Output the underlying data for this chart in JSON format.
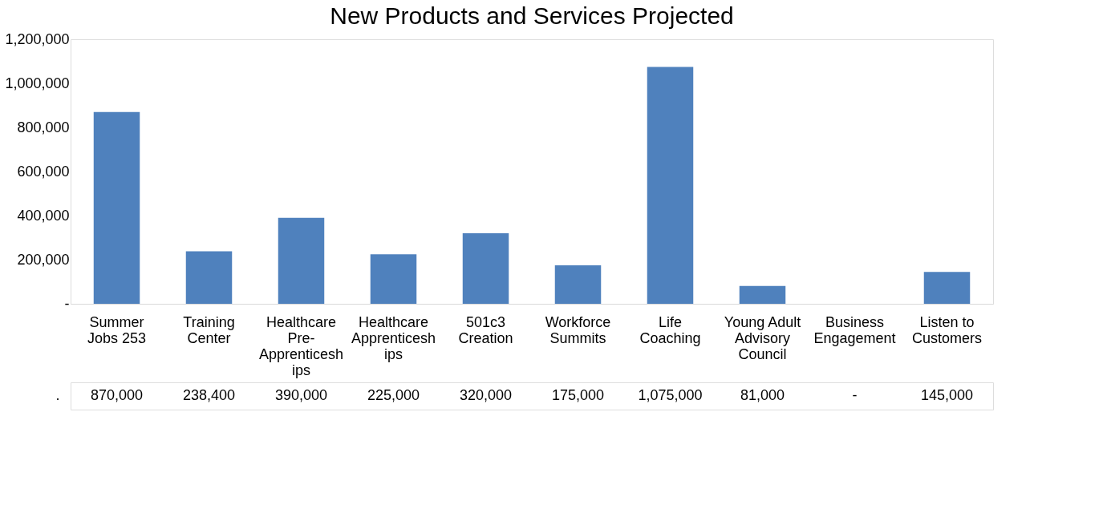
{
  "chart_data": {
    "type": "bar",
    "title": "New Products and Services Projected",
    "categories": [
      "Summer\nJobs 253",
      "Training\nCenter",
      "Healthcare\nPre-\nApprenticesh\nips",
      "Healthcare\nApprenticesh\nips",
      "501c3\nCreation",
      "Workforce\nSummits",
      "Life\nCoaching",
      "Young Adult\nAdvisory\nCouncil",
      "Business\nEngagement",
      "Listen to\nCustomers"
    ],
    "series": [
      {
        "name": ".",
        "color": "#4f81bd",
        "values": [
          870000,
          238400,
          390000,
          225000,
          320000,
          175000,
          1075000,
          81000,
          0,
          145000
        ],
        "value_labels": [
          "870,000",
          "238,400",
          "390,000",
          "225,000",
          "320,000",
          "175,000",
          "1,075,000",
          "81,000",
          "-",
          "145,000"
        ]
      }
    ],
    "ylim": [
      0,
      1200000
    ],
    "yticks": [
      {
        "value": 0,
        "label": "-"
      },
      {
        "value": 200000,
        "label": "200,000"
      },
      {
        "value": 400000,
        "label": "400,000"
      },
      {
        "value": 600000,
        "label": "600,000"
      },
      {
        "value": 800000,
        "label": "800,000"
      },
      {
        "value": 1000000,
        "label": "1,000,000"
      },
      {
        "value": 1200000,
        "label": "1,200,000"
      }
    ],
    "grid": false
  }
}
